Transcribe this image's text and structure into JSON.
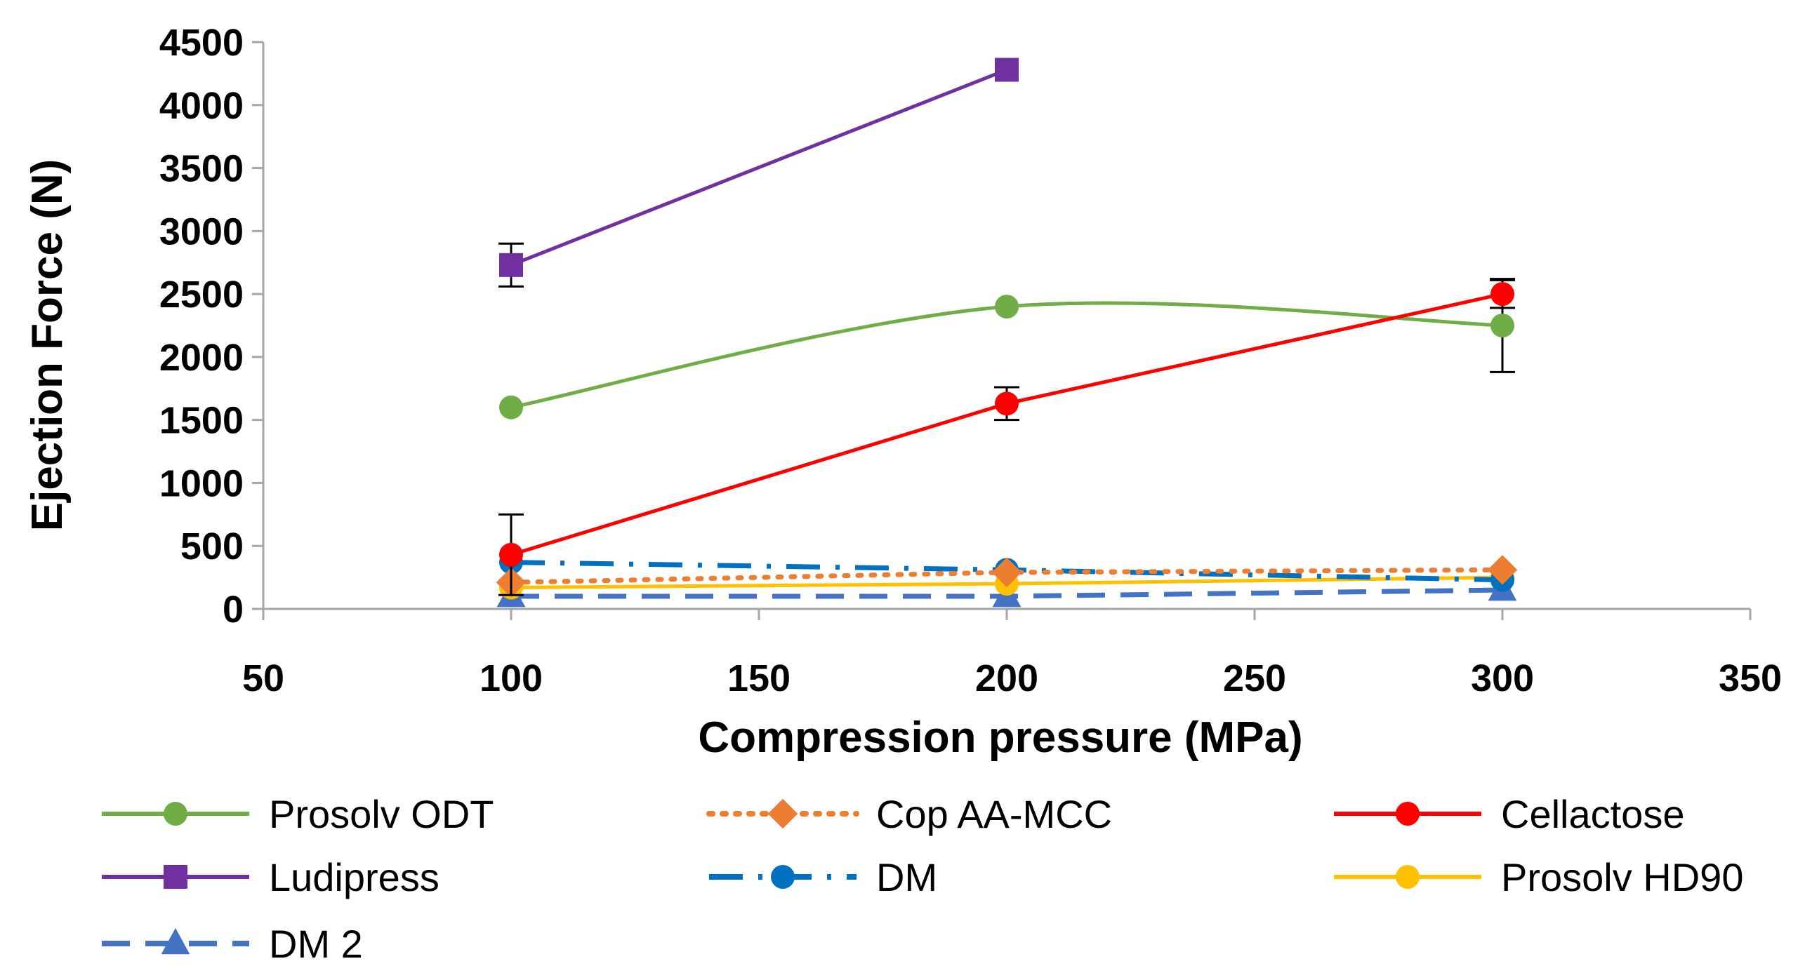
{
  "chart_data": {
    "type": "line",
    "title": "",
    "xlabel": "Compression pressure (MPa)",
    "ylabel": "Ejection Force (N)",
    "xlim": [
      50,
      350
    ],
    "ylim": [
      0,
      4500
    ],
    "x_ticks": [
      50,
      100,
      150,
      200,
      250,
      300,
      350
    ],
    "y_ticks": [
      0,
      500,
      1000,
      1500,
      2000,
      2500,
      3000,
      3500,
      4000,
      4500
    ],
    "x_tick_labels": [
      "50",
      "100",
      "150",
      "200",
      "250",
      "300",
      "350"
    ],
    "y_tick_labels": [
      "0",
      "500",
      "1000",
      "1500",
      "2000",
      "2500",
      "3000",
      "3500",
      "4000",
      "4500"
    ],
    "grid": false,
    "legend_position": "bottom",
    "series": [
      {
        "name": "Prosolv ODT",
        "color": "#70AD47",
        "marker": "circle",
        "dash": "solid",
        "smooth": true,
        "x": [
          100,
          200,
          300
        ],
        "y": [
          1600,
          2400,
          2250
        ],
        "err": [
          0,
          0,
          370
        ]
      },
      {
        "name": "Cop AA-MCC",
        "color": "#ED7D31",
        "marker": "diamond",
        "dash": "dot",
        "smooth": false,
        "x": [
          100,
          200,
          300
        ],
        "y": [
          210,
          290,
          310
        ],
        "err": [
          0,
          0,
          0
        ]
      },
      {
        "name": "Cellactose",
        "color": "#FF0000",
        "marker": "circle",
        "dash": "solid",
        "smooth": false,
        "x": [
          100,
          200,
          300
        ],
        "y": [
          430,
          1630,
          2500
        ],
        "err": [
          320,
          130,
          110
        ]
      },
      {
        "name": "Ludipress",
        "color": "#7030A0",
        "marker": "square",
        "dash": "solid",
        "smooth": false,
        "x": [
          100,
          200
        ],
        "y": [
          2730,
          4280
        ],
        "err": [
          170,
          0
        ]
      },
      {
        "name": "DM",
        "color": "#0070C0",
        "marker": "circle",
        "dash": "dashdot",
        "smooth": false,
        "x": [
          100,
          200,
          300
        ],
        "y": [
          370,
          310,
          230
        ],
        "err": [
          0,
          0,
          0
        ]
      },
      {
        "name": "Prosolv HD90",
        "color": "#FFC000",
        "marker": "circle",
        "dash": "solid",
        "smooth": false,
        "x": [
          100,
          200,
          300
        ],
        "y": [
          170,
          200,
          250
        ],
        "err": [
          0,
          0,
          0
        ]
      },
      {
        "name": "DM 2",
        "color": "#4472C4",
        "marker": "triangle",
        "dash": "dash",
        "smooth": false,
        "x": [
          100,
          200,
          300
        ],
        "y": [
          100,
          100,
          150
        ],
        "err": [
          0,
          0,
          0
        ]
      }
    ]
  }
}
